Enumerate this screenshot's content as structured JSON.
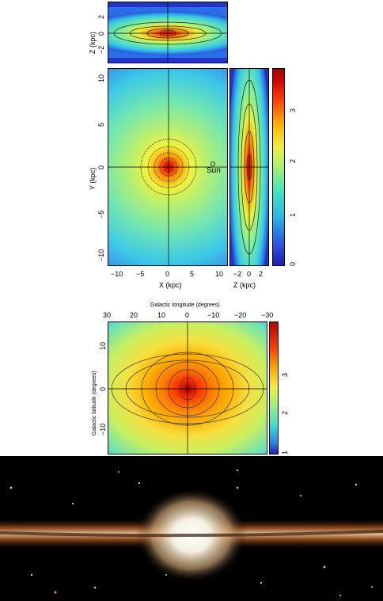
{
  "top_figure": {
    "xz_panel": {
      "ylabel": "Z (kpc)",
      "yticks": [
        "2",
        "0",
        "−2"
      ]
    },
    "xy_panel": {
      "ylabel": "Y (kpc)",
      "yticks": [
        "10",
        "5",
        "0",
        "−5",
        "−10"
      ],
      "xlabel": "X (kpc)",
      "xticks": [
        "−10",
        "−5",
        "0",
        "5",
        "10"
      ],
      "annotation": "Sun"
    },
    "zy_panel": {
      "xlabel": "Z (kpc)",
      "xticks": [
        "−2",
        "0",
        "2"
      ]
    },
    "colorbar": {
      "ticks": [
        "0",
        "1",
        "2",
        "3"
      ]
    },
    "colors": {
      "low": "#2a2ad6",
      "mid": "#3ce0c8",
      "high": "#ff2a00",
      "peak": "#b00000"
    }
  },
  "middle_figure": {
    "xlabel": "Galactic longitude (degrees)",
    "xticks": [
      "30",
      "20",
      "10",
      "0",
      "−10",
      "−20",
      "−30"
    ],
    "ylabel": "Galactic latitude (degrees)",
    "yticks": [
      "10",
      "0",
      "−10"
    ],
    "colorbar": {
      "ticks": [
        "1",
        "2",
        "3"
      ]
    }
  }
}
